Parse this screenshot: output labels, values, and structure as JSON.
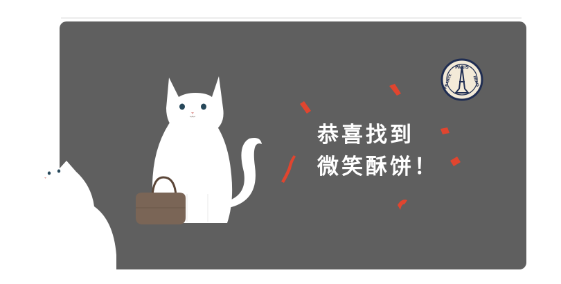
{
  "message": {
    "line1": "恭喜找到",
    "line2": "微笑酥饼！"
  },
  "badge": {
    "top_text": "PARIS",
    "left_text": "FRANCE",
    "right_text": "PARIS"
  },
  "colors": {
    "card": "#5f5f5f",
    "confetti": "#e0452f",
    "cat": "#ffffff",
    "bag": "#7a6556",
    "badge_navy": "#1f2d52"
  }
}
